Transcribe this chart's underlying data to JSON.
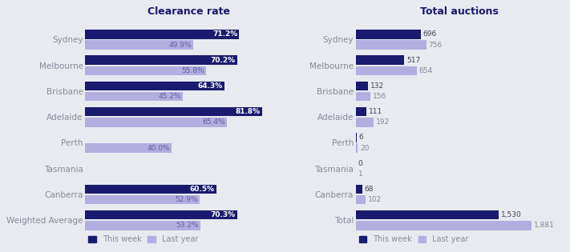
{
  "background_color": "#e8eaf0",
  "dark_blue": "#1a1a6e",
  "light_purple": "#b3aee0",
  "text_color": "#8a8a9a",
  "title_color": "#1a1a6e",
  "clearance": {
    "title": "Clearance rate",
    "categories": [
      "Weighted Average",
      "Canberra",
      "Tasmania",
      "Perth",
      "Adelaide",
      "Brisbane",
      "Melbourne",
      "Sydney"
    ],
    "this_week": [
      70.3,
      60.5,
      null,
      null,
      81.8,
      64.3,
      70.2,
      71.2
    ],
    "last_year": [
      53.2,
      52.9,
      null,
      40.0,
      65.4,
      45.2,
      55.8,
      49.9
    ],
    "this_week_labels": [
      "70.3%",
      "60.5%",
      "",
      "",
      "81.8%",
      "64.3%",
      "70.2%",
      "71.2%"
    ],
    "last_year_labels": [
      "53.2%",
      "52.9%",
      "",
      "40.0%",
      "65.4%",
      "45.2%",
      "55.8%",
      "49.9%"
    ]
  },
  "auctions": {
    "title": "Total auctions",
    "categories": [
      "Total",
      "Canberra",
      "Tasmania",
      "Perth",
      "Adelaide",
      "Brisbane",
      "Melbourne",
      "Sydney"
    ],
    "this_week": [
      1530,
      68,
      0,
      6,
      111,
      132,
      517,
      696
    ],
    "last_year": [
      1881,
      102,
      1,
      20,
      192,
      156,
      654,
      756
    ],
    "this_week_labels": [
      "1,530",
      "68",
      "0",
      "6",
      "111",
      "132",
      "517",
      "696"
    ],
    "last_year_labels": [
      "1,881",
      "102",
      "1",
      "20",
      "192",
      "156",
      "654",
      "756"
    ]
  },
  "legend_this_week": "This week",
  "legend_last_year": "Last year"
}
